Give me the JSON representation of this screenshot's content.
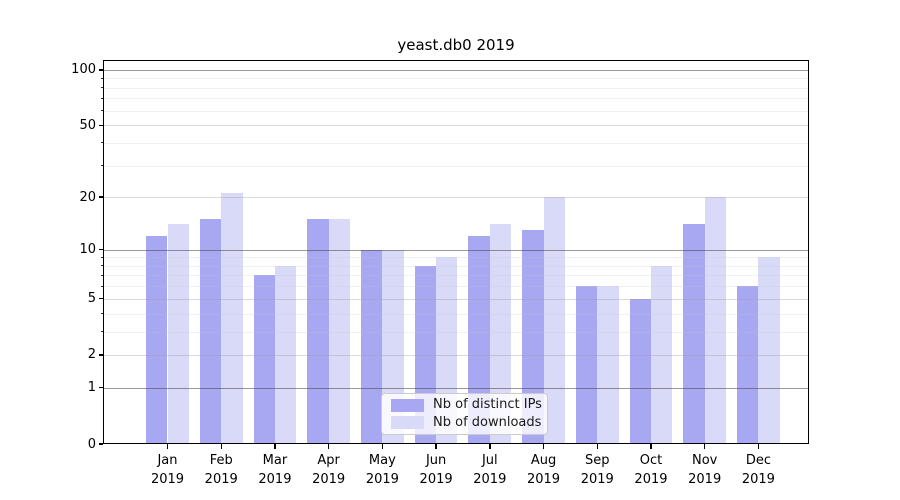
{
  "chart_data": {
    "type": "bar",
    "title": "yeast.db0 2019",
    "categories": [
      "Jan",
      "Feb",
      "Mar",
      "Apr",
      "May",
      "Jun",
      "Jul",
      "Aug",
      "Sep",
      "Oct",
      "Nov",
      "Dec"
    ],
    "year_label": "2019",
    "series": [
      {
        "name": "Nb of distinct IPs",
        "color": "#a7a7f2",
        "values": [
          12,
          15,
          7,
          15,
          10,
          8,
          12,
          13,
          6,
          5,
          14,
          6
        ]
      },
      {
        "name": "Nb of downloads",
        "color": "#d9d9f8",
        "values": [
          14,
          21,
          8,
          15,
          10,
          9,
          14,
          20,
          6,
          8,
          20,
          9
        ]
      }
    ],
    "xlabel": "",
    "ylabel": "",
    "yscale": "log1p",
    "ylim": [
      0,
      113
    ],
    "yticks": [
      0,
      1,
      2,
      5,
      10,
      20,
      50,
      100
    ],
    "yticks_decade": [
      1,
      10,
      100
    ],
    "yticks_mid": [
      2,
      5,
      20,
      50
    ],
    "yticks_minor": [
      3,
      4,
      6,
      7,
      8,
      9,
      30,
      40,
      60,
      70,
      80,
      90
    ],
    "grid": "on",
    "legend_position": "lower-center"
  }
}
